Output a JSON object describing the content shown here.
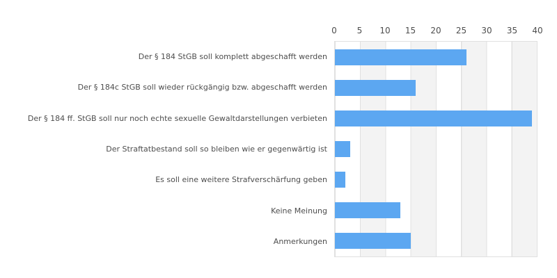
{
  "chart_data": {
    "type": "bar",
    "orientation": "horizontal",
    "title": "",
    "xlabel": "",
    "ylabel": "",
    "categories": [
      "Der § 184 StGB soll komplett abgeschafft werden",
      "Der § 184c StGB soll wieder rückgängig bzw. abgeschafft werden",
      "Der § 184 ff. StGB soll nur noch echte sexuelle Gewaltdarstellungen verbieten",
      "Der Straftatbestand soll so bleiben wie er gegenwärtig ist",
      "Es soll eine weitere Strafverschärfung geben",
      "Keine Meinung",
      "Anmerkungen"
    ],
    "values": [
      26,
      16,
      39,
      3,
      2,
      13,
      15
    ],
    "xlim": [
      0,
      40
    ],
    "xticks": [
      0,
      5,
      10,
      15,
      20,
      25,
      30,
      35,
      40
    ],
    "grid": true,
    "grid_bands_alternating": true,
    "legend": false,
    "colors": {
      "bar": "#5ca7f1",
      "band": "#f3f3f3",
      "gridline": "#e0e0e0",
      "text": "#4d4d4d",
      "background": "#ffffff"
    }
  }
}
